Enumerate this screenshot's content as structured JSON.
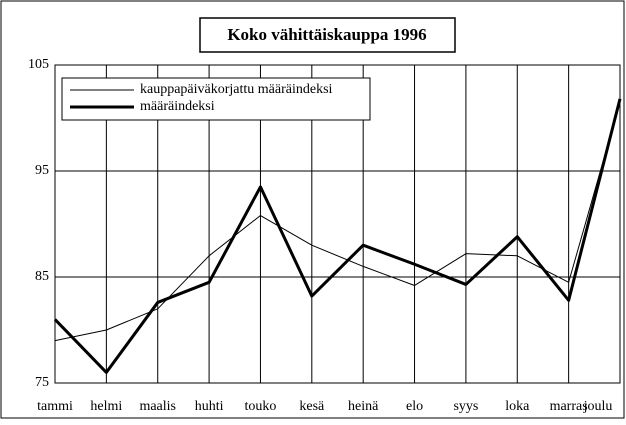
{
  "chart_data": {
    "type": "line",
    "title": "Koko vähittäiskauppa 1996",
    "categories": [
      "tammi",
      "helmi",
      "maalis",
      "huhti",
      "touko",
      "kesä",
      "heinä",
      "elo",
      "syys",
      "loka",
      "marras",
      "joulu"
    ],
    "series": [
      {
        "name": "kauppapäiväkorjattu määräindeksi",
        "color": "#000000",
        "width": 1,
        "values": [
          79,
          80,
          82,
          87,
          90.8,
          88,
          86,
          84.2,
          87.2,
          87,
          84.5,
          101.5
        ]
      },
      {
        "name": "määräindeksi",
        "color": "#000000",
        "width": 3,
        "values": [
          81,
          76,
          82.6,
          84.5,
          93.5,
          83.2,
          88,
          86.2,
          84.3,
          88.8,
          82.8,
          101.8
        ]
      }
    ],
    "ylim": [
      75,
      105
    ],
    "yticks": [
      75,
      85,
      95,
      105
    ],
    "grid": true,
    "legend": "top-left"
  }
}
